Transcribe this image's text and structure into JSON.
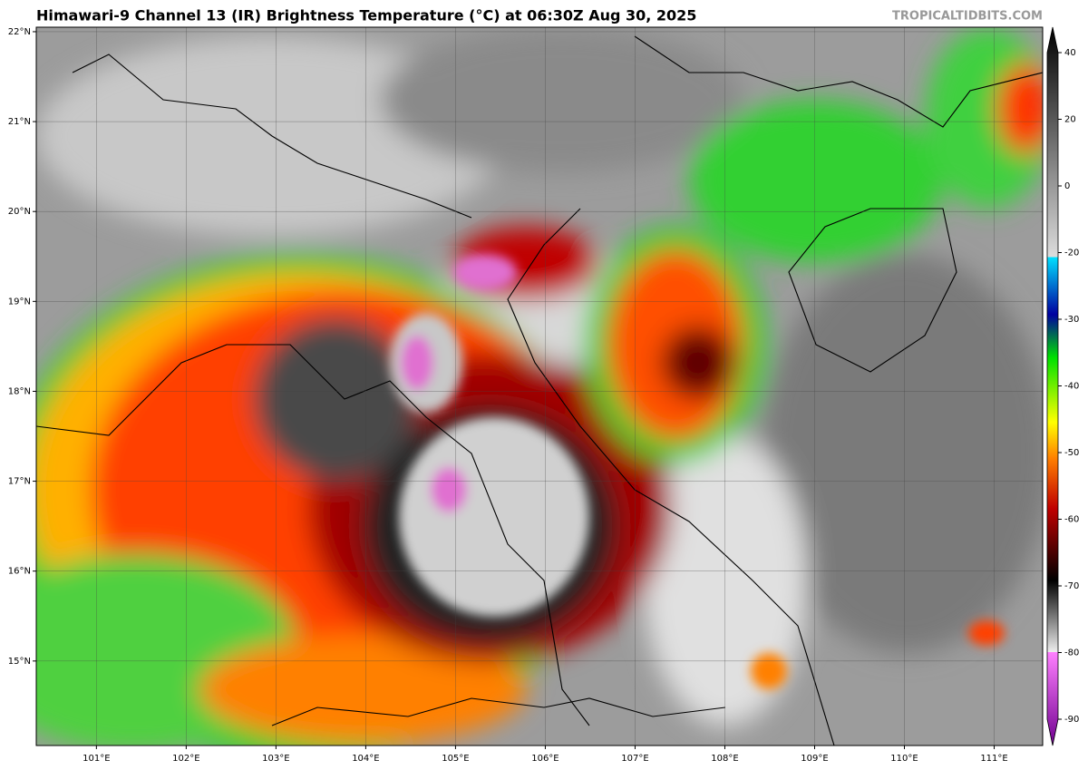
{
  "title": "Himawari-9 Channel 13 (IR) Brightness Temperature (°C) at 06:30Z Aug 30, 2025",
  "watermark": "TROPICALTIDBITS.COM",
  "map": {
    "xlim": [
      100.33,
      111.54
    ],
    "ylim": [
      14.06,
      22.05
    ],
    "lat_ticks": [
      {
        "value": 15,
        "label": "15°N"
      },
      {
        "value": 16,
        "label": "16°N"
      },
      {
        "value": 17,
        "label": "17°N"
      },
      {
        "value": 18,
        "label": "18°N"
      },
      {
        "value": 19,
        "label": "19°N"
      },
      {
        "value": 20,
        "label": "20°N"
      },
      {
        "value": 21,
        "label": "21°N"
      },
      {
        "value": 22,
        "label": "22°N"
      }
    ],
    "lon_ticks": [
      {
        "value": 101,
        "label": "101°E"
      },
      {
        "value": 102,
        "label": "102°E"
      },
      {
        "value": 103,
        "label": "103°E"
      },
      {
        "value": 104,
        "label": "104°E"
      },
      {
        "value": 105,
        "label": "105°E"
      },
      {
        "value": 106,
        "label": "106°E"
      },
      {
        "value": 107,
        "label": "107°E"
      },
      {
        "value": 108,
        "label": "108°E"
      },
      {
        "value": 109,
        "label": "109°E"
      },
      {
        "value": 110,
        "label": "110°E"
      },
      {
        "value": 111,
        "label": "111°E"
      }
    ]
  },
  "colorbar": {
    "ticks": [
      40,
      20,
      0,
      -20,
      -30,
      -40,
      -50,
      -60,
      -70,
      -80,
      -90
    ]
  }
}
